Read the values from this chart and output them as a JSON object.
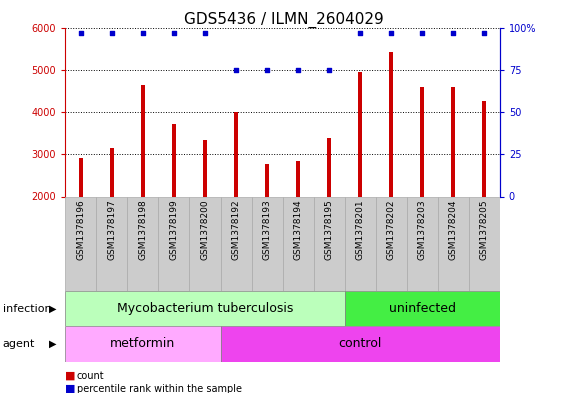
{
  "title": "GDS5436 / ILMN_2604029",
  "samples": [
    "GSM1378196",
    "GSM1378197",
    "GSM1378198",
    "GSM1378199",
    "GSM1378200",
    "GSM1378192",
    "GSM1378193",
    "GSM1378194",
    "GSM1378195",
    "GSM1378201",
    "GSM1378202",
    "GSM1378203",
    "GSM1378204",
    "GSM1378205"
  ],
  "counts": [
    2920,
    3150,
    4650,
    3720,
    3330,
    4000,
    2760,
    2830,
    3380,
    4950,
    5430,
    4590,
    4590,
    4260
  ],
  "percentiles": [
    97,
    97,
    97,
    97,
    97,
    75,
    75,
    75,
    75,
    97,
    97,
    97,
    97,
    97
  ],
  "ylim": [
    2000,
    6000
  ],
  "yticks": [
    2000,
    3000,
    4000,
    5000,
    6000
  ],
  "y2lim": [
    0,
    100
  ],
  "y2ticks": [
    0,
    25,
    50,
    75,
    100
  ],
  "bar_color": "#cc0000",
  "percentile_color": "#0000cc",
  "bar_width": 0.12,
  "infection_labels": [
    {
      "text": "Mycobacterium tuberculosis",
      "start": 0,
      "end": 8,
      "color": "#bbffbb"
    },
    {
      "text": "uninfected",
      "start": 9,
      "end": 13,
      "color": "#44ee44"
    }
  ],
  "agent_labels": [
    {
      "text": "metformin",
      "start": 0,
      "end": 4,
      "color": "#ffaaff"
    },
    {
      "text": "control",
      "start": 5,
      "end": 13,
      "color": "#ee44ee"
    }
  ],
  "infection_row_label": "infection",
  "agent_row_label": "agent",
  "legend_count_label": "count",
  "legend_pct_label": "percentile rank within the sample",
  "title_fontsize": 11,
  "tick_fontsize": 7,
  "label_fontsize": 8,
  "annot_fontsize": 9,
  "xtick_bg": "#cccccc",
  "xtick_border": "#aaaaaa"
}
